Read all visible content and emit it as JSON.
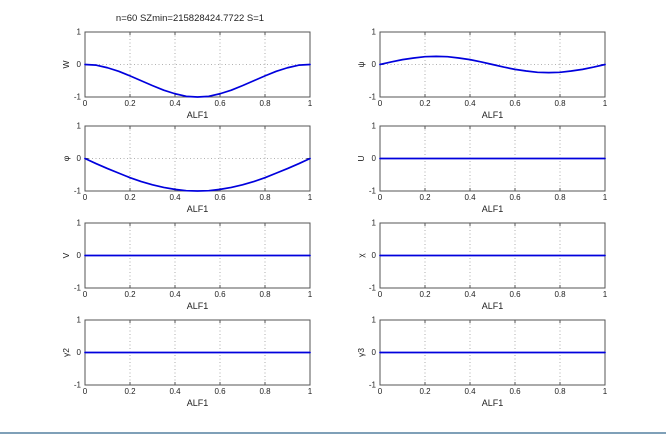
{
  "figure": {
    "background": "#ffffff",
    "bottom_rule_color": "#7fa0b8"
  },
  "chart_data": {
    "type": "line",
    "layout": "4x2-grid",
    "xlabel": "ALF1",
    "xlim": [
      0,
      1
    ],
    "ylim": [
      -1,
      1
    ],
    "xtick_vals": [
      0,
      0.2,
      0.4,
      0.6,
      0.8,
      1
    ],
    "xtick_labels": [
      "0",
      "0.2",
      "0.4",
      "0.6",
      "0.8",
      "1"
    ],
    "ytick_vals": [
      1,
      0,
      -1
    ],
    "ytick_labels": [
      "1",
      "0",
      "-1"
    ],
    "grid": "dotted, vertical at x ticks and horizontal at y=0",
    "line_color": "#0000dd",
    "axis_color": "#555555",
    "grid_color": "#999999",
    "text_color": "#222222",
    "x": [
      0,
      0.05,
      0.1,
      0.15,
      0.2,
      0.25,
      0.3,
      0.35,
      0.4,
      0.45,
      0.5,
      0.55,
      0.6,
      0.65,
      0.7,
      0.75,
      0.8,
      0.85,
      0.9,
      0.95,
      1
    ],
    "subplots": [
      {
        "ylabel": "W",
        "title": "n=60 SZmin=215828424.7722 S=1",
        "y": [
          0,
          -0.02,
          -0.1,
          -0.21,
          -0.35,
          -0.5,
          -0.65,
          -0.79,
          -0.9,
          -0.98,
          -1,
          -0.98,
          -0.9,
          -0.79,
          -0.65,
          -0.5,
          -0.35,
          -0.21,
          -0.1,
          -0.02,
          0
        ]
      },
      {
        "ylabel": "ψ",
        "title": "",
        "y": [
          0,
          0.08,
          0.15,
          0.2,
          0.24,
          0.25,
          0.24,
          0.2,
          0.15,
          0.08,
          0,
          -0.08,
          -0.15,
          -0.2,
          -0.24,
          -0.25,
          -0.24,
          -0.2,
          -0.15,
          -0.08,
          0
        ]
      },
      {
        "ylabel": "φ",
        "title": "",
        "y": [
          0,
          -0.16,
          -0.31,
          -0.45,
          -0.59,
          -0.71,
          -0.81,
          -0.89,
          -0.95,
          -0.99,
          -1,
          -0.99,
          -0.95,
          -0.89,
          -0.81,
          -0.71,
          -0.59,
          -0.45,
          -0.31,
          -0.16,
          0
        ]
      },
      {
        "ylabel": "U",
        "title": "",
        "y": [
          0,
          0,
          0,
          0,
          0,
          0,
          0,
          0,
          0,
          0,
          0,
          0,
          0,
          0,
          0,
          0,
          0,
          0,
          0,
          0,
          0
        ]
      },
      {
        "ylabel": "V",
        "title": "",
        "y": [
          0,
          0,
          0,
          0,
          0,
          0,
          0,
          0,
          0,
          0,
          0,
          0,
          0,
          0,
          0,
          0,
          0,
          0,
          0,
          0,
          0
        ]
      },
      {
        "ylabel": "χ",
        "title": "",
        "y": [
          0,
          0,
          0,
          0,
          0,
          0,
          0,
          0,
          0,
          0,
          0,
          0,
          0,
          0,
          0,
          0,
          0,
          0,
          0,
          0,
          0
        ]
      },
      {
        "ylabel": "γ2",
        "title": "",
        "y": [
          0,
          0,
          0,
          0,
          0,
          0,
          0,
          0,
          0,
          0,
          0,
          0,
          0,
          0,
          0,
          0,
          0,
          0,
          0,
          0,
          0
        ]
      },
      {
        "ylabel": "γ3",
        "title": "",
        "y": [
          0,
          0,
          0,
          0,
          0,
          0,
          0,
          0,
          0,
          0,
          0,
          0,
          0,
          0,
          0,
          0,
          0,
          0,
          0,
          0,
          0
        ]
      }
    ]
  }
}
